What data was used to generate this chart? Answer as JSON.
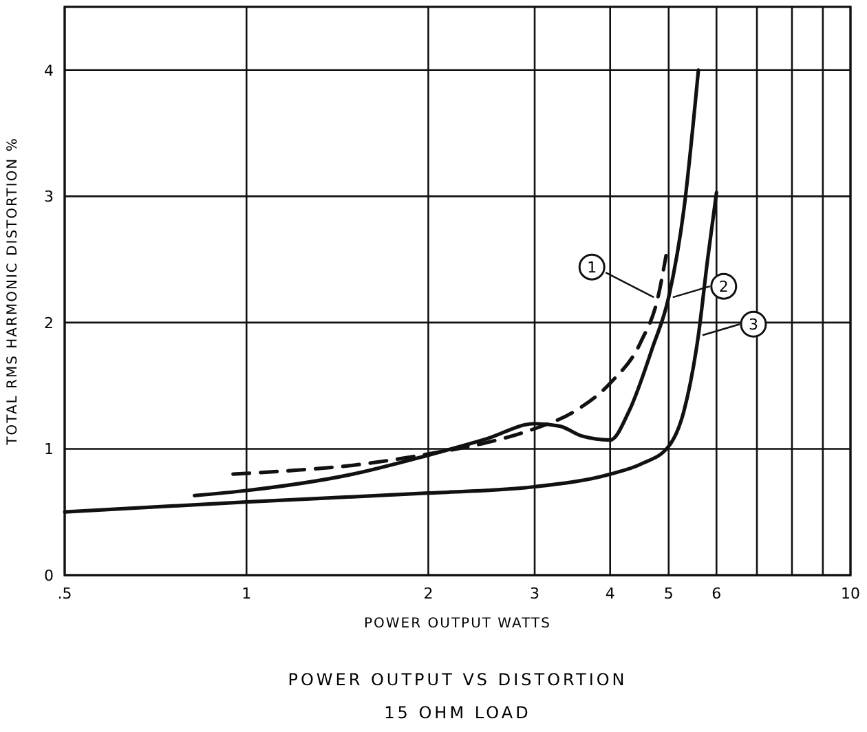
{
  "chart_data": {
    "type": "line",
    "title": "POWER OUTPUT VS DISTORTION",
    "subtitle": "15 OHM LOAD",
    "xlabel": "POWER OUTPUT WATTS",
    "ylabel": "TOTAL RMS HARMONIC DISTORTION %",
    "log": "x",
    "xlim": [
      0.5,
      10
    ],
    "ylim": [
      0,
      4.5
    ],
    "xticks": [
      {
        "value": 0.5,
        "label": ".5"
      },
      1,
      2,
      3,
      4,
      5,
      6,
      {
        "value": 7,
        "label": null
      },
      {
        "value": 8,
        "label": null
      },
      {
        "value": 9,
        "label": null
      },
      10
    ],
    "yticks": [
      0,
      1,
      2,
      3,
      4
    ],
    "grid": true,
    "marker": "none",
    "legend": "right",
    "series": [
      {
        "name": "1",
        "color": "#111111",
        "line_style": "dashed",
        "x": [
          0.95,
          1.2,
          1.5,
          2,
          2.5,
          3,
          3.5,
          4,
          4.5,
          4.8,
          4.95
        ],
        "values": [
          0.8,
          0.83,
          0.87,
          0.96,
          1.05,
          1.16,
          1.3,
          1.52,
          1.85,
          2.2,
          2.53
        ]
      },
      {
        "name": "2",
        "color": "#111111",
        "line_style": "solid",
        "x": [
          0.82,
          1,
          1.5,
          2,
          2.5,
          3,
          3.3,
          3.6,
          4,
          4.3,
          4.7,
          5,
          5.3,
          5.6
        ],
        "values": [
          0.63,
          0.67,
          0.8,
          0.95,
          1.08,
          1.2,
          1.18,
          1.1,
          1.07,
          1.3,
          1.8,
          2.2,
          2.9,
          4.0
        ]
      },
      {
        "name": "3",
        "color": "#111111",
        "line_style": "solid",
        "x": [
          0.5,
          1,
          2,
          3,
          4,
          4.5,
          5,
          5.3,
          5.6,
          5.8,
          6
        ],
        "values": [
          0.5,
          0.58,
          0.65,
          0.7,
          0.8,
          0.88,
          1.02,
          1.3,
          1.9,
          2.5,
          3.03
        ]
      }
    ]
  }
}
